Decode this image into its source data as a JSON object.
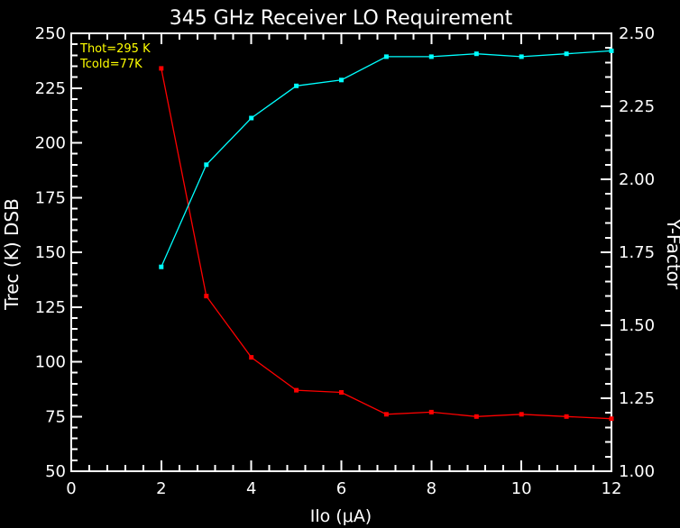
{
  "legend": {
    "line1": "Thot=295 K",
    "line2": "Tcold=77K"
  },
  "colors": {
    "background": "#000000",
    "axis": "#ffffff",
    "text": "#ffffff",
    "legend_text": "#ffff00",
    "trec_series": "#ff0000",
    "yfactor_series": "#00ffff"
  },
  "chart_data": {
    "type": "line",
    "title": "345 GHz Receiver LO Requirement",
    "xlabel": "Ilo (μA)",
    "ylabel_left": "Trec (K) DSB",
    "ylabel_right": "Y-Factor",
    "xlim": [
      0,
      12
    ],
    "ylim_left": [
      50,
      250
    ],
    "ylim_right": [
      1.0,
      2.5
    ],
    "x_major_ticks": [
      "0",
      "2",
      "4",
      "6",
      "8",
      "10",
      "12"
    ],
    "x_minor_step": 0.4,
    "y_left_major_ticks": [
      "50",
      "75",
      "100",
      "125",
      "150",
      "175",
      "200",
      "225",
      "250"
    ],
    "y_left_minor_step": 5,
    "y_right_major_ticks": [
      "1.00",
      "1.25",
      "1.50",
      "1.75",
      "2.00",
      "2.25",
      "2.50"
    ],
    "y_right_minor_step": 0.05,
    "grid": false,
    "legend_position": "top-left-inside",
    "annotations": [
      "Thot=295 K",
      "Tcold=77K"
    ],
    "x": [
      2,
      3,
      4,
      5,
      6,
      7,
      8,
      9,
      10,
      11,
      12
    ],
    "series": [
      {
        "name": "Trec (K) DSB",
        "axis": "left",
        "color": "#ff0000",
        "marker": "square",
        "values": [
          234,
          130,
          102,
          87,
          86,
          76,
          77,
          75,
          76,
          75,
          74
        ]
      },
      {
        "name": "Y-Factor",
        "axis": "right",
        "color": "#00ffff",
        "marker": "square",
        "values": [
          1.7,
          2.05,
          2.21,
          2.32,
          2.34,
          2.42,
          2.42,
          2.43,
          2.42,
          2.43,
          2.44
        ]
      }
    ]
  }
}
